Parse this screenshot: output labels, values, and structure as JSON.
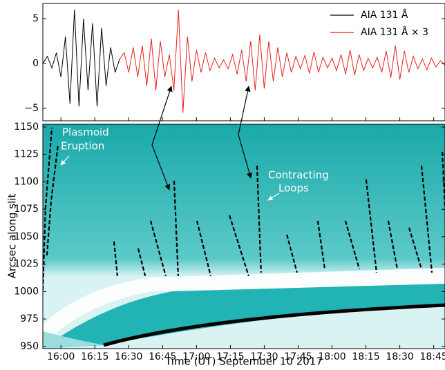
{
  "chart_data": [
    {
      "type": "line",
      "x": [
        952,
        954,
        956,
        958,
        960,
        962,
        964,
        966,
        968,
        970,
        972,
        974,
        976,
        978,
        980,
        982,
        984,
        986,
        988,
        990,
        992,
        994,
        996,
        998,
        1000,
        1002,
        1004,
        1006,
        1008,
        1010,
        1012,
        1014,
        1016,
        1018,
        1020,
        1022,
        1024,
        1026,
        1028,
        1030,
        1032,
        1034,
        1036,
        1038,
        1040,
        1042,
        1044,
        1046,
        1048,
        1050,
        1052,
        1054,
        1056,
        1058,
        1060,
        1062,
        1064,
        1066,
        1068,
        1070,
        1072,
        1074,
        1076,
        1078,
        1080,
        1082,
        1084,
        1086,
        1088,
        1090,
        1092,
        1094,
        1096,
        1098,
        1100,
        1102,
        1104,
        1106,
        1108,
        1110,
        1112,
        1114,
        1116,
        1118,
        1120,
        1122,
        1124,
        1126,
        1128,
        1130
      ],
      "series": [
        {
          "name": "AIA 131 Å",
          "color": "#000000",
          "values": [
            0,
            0.8,
            -0.5,
            1.2,
            -1.5,
            3,
            -4.5,
            6,
            -4.8,
            5,
            -3,
            4.5,
            -4.8,
            4,
            -2.5,
            1.8,
            -1,
            0.5,
            null,
            null,
            null,
            null,
            null,
            null,
            null,
            null,
            null,
            null,
            null,
            null,
            null,
            null,
            null,
            null,
            null,
            null,
            null,
            null,
            null,
            null,
            null,
            null,
            null,
            null,
            null,
            null,
            null,
            null,
            null,
            null,
            null,
            null,
            null,
            null,
            null,
            null,
            null,
            null,
            null,
            null,
            null,
            null,
            null,
            null,
            null,
            null,
            null,
            null,
            null,
            null,
            null,
            null,
            null,
            null,
            null,
            null,
            null,
            null,
            null,
            null,
            null,
            null,
            null,
            null,
            null,
            null,
            null,
            null,
            null,
            null
          ]
        },
        {
          "name": "AIA 131 Å × 3",
          "color": "#e8201c",
          "values": [
            null,
            null,
            null,
            null,
            null,
            null,
            null,
            null,
            null,
            null,
            null,
            null,
            null,
            null,
            null,
            null,
            null,
            0.5,
            1.2,
            -1,
            1.8,
            -1.5,
            2,
            -2.5,
            2.8,
            -3,
            2.5,
            -1.5,
            1,
            -3,
            6,
            -5.5,
            3,
            -2,
            1.5,
            -1,
            1.2,
            -0.8,
            0.6,
            -0.5,
            0.4,
            -0.6,
            1,
            -1.2,
            1.5,
            -2,
            2.5,
            -3,
            3.2,
            -2.8,
            2.5,
            -2,
            1.8,
            -1.5,
            1.2,
            -1,
            0.8,
            -0.6,
            0.9,
            -1.1,
            1.3,
            -1,
            0.7,
            -0.5,
            0.6,
            -0.8,
            1,
            -1.2,
            1.5,
            -1.3,
            1,
            -0.8,
            0.6,
            -0.5,
            0.7,
            -1,
            1.4,
            -1.6,
            2,
            -1.8,
            1.4,
            -1,
            0.8,
            -0.6,
            0.5,
            -0.7,
            0.6,
            -0.4,
            0.3,
            -0.2
          ]
        }
      ],
      "xlim": [
        952,
        1130
      ],
      "ylim": [
        -6.4,
        6.7
      ],
      "yticks": [
        {
          "value": -5,
          "label": "−5"
        },
        0,
        5
      ],
      "legend": "upper right"
    },
    {
      "type": "line",
      "xlabel": "Time (UT) September 10 2017",
      "ylabel": "Arcsec along slit",
      "xlim": [
        952,
        1130
      ],
      "ylim": [
        948,
        1152.5
      ],
      "xticks": [
        {
          "value": 960,
          "label": "16:00"
        },
        {
          "value": 975,
          "label": "16:15"
        },
        {
          "value": 990,
          "label": "16:30"
        },
        {
          "value": 1005,
          "label": "16:45"
        },
        {
          "value": 1020,
          "label": "17:00"
        },
        {
          "value": 1035,
          "label": "17:15"
        },
        {
          "value": 1050,
          "label": "17:30"
        },
        {
          "value": 1065,
          "label": "17:45"
        },
        {
          "value": 1080,
          "label": "18:00"
        },
        {
          "value": 1095,
          "label": "18:15"
        },
        {
          "value": 1110,
          "label": "18:30"
        },
        {
          "value": 1125,
          "label": "18:45"
        }
      ],
      "yticks": [
        950,
        975,
        1000,
        1025,
        1050,
        1075,
        1100,
        1125,
        1150
      ],
      "annotations": [
        [
          "Plasmoid",
          "Eruption"
        ],
        [
          "Contracting",
          "Loops"
        ]
      ],
      "tracks": [
        {
          "x": [
            952,
            953.2,
            956
          ],
          "values": [
            1001.6,
            1077,
            1149.4
          ]
        },
        {
          "x": [
            953.8,
            955.7,
            958.7
          ],
          "values": [
            1033,
            1083.3,
            1133.6
          ]
        },
        {
          "x": [
            983.5,
            985
          ],
          "values": [
            1045.6,
            1014.2
          ]
        },
        {
          "x": [
            994.2,
            997.3
          ],
          "values": [
            1039.3,
            1014.2
          ]
        },
        {
          "x": [
            999.7,
            1006.4
          ],
          "values": [
            1064.5,
            1014.2
          ]
        },
        {
          "x": [
            1010.1,
            1011.9
          ],
          "values": [
            1101,
            1014.2
          ]
        },
        {
          "x": [
            1020.2,
            1026.3
          ],
          "values": [
            1064.5,
            1014.2
          ]
        },
        {
          "x": [
            1034.6,
            1043.1
          ],
          "values": [
            1069.5,
            1014.2
          ]
        },
        {
          "x": [
            1046.8,
            1048.6
          ],
          "values": [
            1114.8,
            1017.3
          ]
        },
        {
          "x": [
            1060,
            1064.5
          ],
          "values": [
            1051.9,
            1017.3
          ]
        },
        {
          "x": [
            1073.7,
            1076.8
          ],
          "values": [
            1064.5,
            1020.4
          ]
        },
        {
          "x": [
            1085.9,
            1092.1
          ],
          "values": [
            1064.5,
            1020.4
          ]
        },
        {
          "x": [
            1095.1,
            1099.7
          ],
          "values": [
            1102.2,
            1017.3
          ]
        },
        {
          "x": [
            1104.9,
            1108.9
          ],
          "values": [
            1064.5,
            1020.4
          ]
        },
        {
          "x": [
            1114.1,
            1119.6
          ],
          "values": [
            1058.2,
            1020.4
          ]
        },
        {
          "x": [
            1119.6,
            1124.2
          ],
          "values": [
            1114.8,
            1017.3
          ]
        },
        {
          "x": [
            1128.8,
            1130
          ],
          "values": [
            1127.4,
            1077
          ]
        }
      ]
    }
  ]
}
